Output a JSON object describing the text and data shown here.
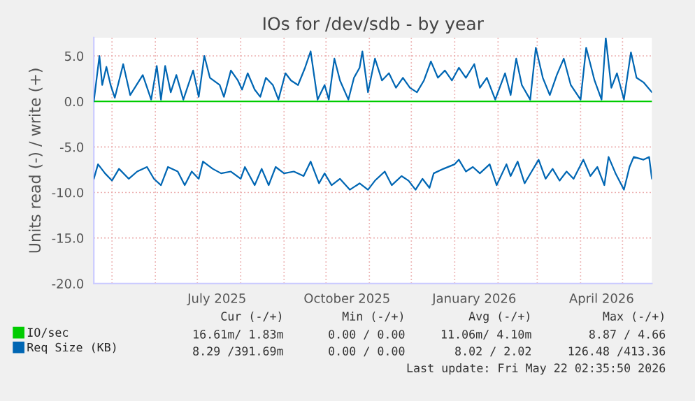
{
  "chart_data": {
    "type": "line",
    "title": "IOs for /dev/sdb - by year",
    "ylabel": "Units read (-) / write (+)",
    "series": [
      {
        "name": "IO/sec",
        "color": "#00cc00",
        "x": [
          "2025-04-18",
          "2026-05-22"
        ],
        "values": [
          0.0,
          0.0
        ]
      },
      {
        "name": "Req Size (KB)",
        "color": "#0066b3",
        "x": [
          "2025-04-18",
          "2025-04-22",
          "2025-04-24",
          "2025-04-27",
          "2025-04-30",
          "2025-05-03",
          "2025-05-09",
          "2025-05-14",
          "2025-05-23",
          "2025-05-29",
          "2025-06-02",
          "2025-06-05",
          "2025-06-08",
          "2025-06-12",
          "2025-06-16",
          "2025-06-21",
          "2025-06-28",
          "2025-07-02",
          "2025-07-06",
          "2025-07-10",
          "2025-07-17",
          "2025-07-20",
          "2025-07-25",
          "2025-07-30",
          "2025-08-02",
          "2025-08-06",
          "2025-08-11",
          "2025-08-15",
          "2025-08-19",
          "2025-08-24",
          "2025-08-28",
          "2025-09-02",
          "2025-09-06",
          "2025-09-11",
          "2025-09-16",
          "2025-09-20",
          "2025-09-25",
          "2025-09-30",
          "2025-10-03",
          "2025-10-07",
          "2025-10-11",
          "2025-10-17",
          "2025-10-21",
          "2025-10-25",
          "2025-10-27",
          "2025-10-31",
          "2025-11-05",
          "2025-11-10",
          "2025-11-15",
          "2025-11-20",
          "2025-11-25",
          "2025-11-30",
          "2025-12-05",
          "2025-12-10",
          "2025-12-15",
          "2025-12-20",
          "2025-12-25",
          "2025-12-30",
          "2026-01-04",
          "2026-01-09",
          "2026-01-15",
          "2026-01-19",
          "2026-01-24",
          "2026-01-30",
          "2026-02-06",
          "2026-02-10",
          "2026-02-14",
          "2026-02-18",
          "2026-02-24",
          "2026-02-28",
          "2026-03-05",
          "2026-03-10",
          "2026-03-15",
          "2026-03-20",
          "2026-03-25",
          "2026-04-01",
          "2026-04-05",
          "2026-04-11",
          "2026-04-16",
          "2026-04-19",
          "2026-04-23",
          "2026-04-27",
          "2026-05-02",
          "2026-05-07",
          "2026-05-11",
          "2026-05-16",
          "2026-05-22"
        ],
        "values": [
          0.0,
          5.0,
          1.8,
          3.8,
          1.8,
          0.4,
          4.1,
          0.7,
          2.9,
          0.2,
          3.9,
          0.2,
          3.9,
          1.0,
          2.9,
          0.2,
          3.4,
          0.5,
          5.0,
          2.6,
          1.8,
          0.5,
          3.4,
          2.3,
          1.3,
          3.1,
          1.3,
          0.5,
          2.6,
          1.8,
          0.2,
          3.1,
          2.3,
          1.8,
          3.7,
          5.5,
          0.2,
          1.8,
          0.2,
          4.7,
          2.3,
          0.2,
          2.6,
          3.7,
          5.5,
          1.0,
          4.7,
          2.3,
          3.1,
          1.5,
          2.6,
          1.5,
          1.0,
          2.3,
          4.4,
          2.6,
          3.4,
          2.3,
          3.7,
          2.6,
          4.1,
          1.5,
          2.6,
          0.2,
          3.1,
          0.7,
          4.7,
          1.8,
          0.2,
          5.9,
          2.6,
          0.7,
          2.9,
          4.7,
          1.8,
          0.2,
          5.9,
          2.3,
          0.2,
          7.0,
          1.5,
          3.1,
          0.2,
          5.4,
          2.6,
          2.1,
          1.0
        ]
      },
      {
        "color": "#0066b3",
        "x": [
          "2025-04-18",
          "2025-04-21",
          "2025-04-26",
          "2025-05-01",
          "2025-05-06",
          "2025-05-13",
          "2025-05-19",
          "2025-05-26",
          "2025-05-31",
          "2025-06-05",
          "2025-06-10",
          "2025-06-17",
          "2025-06-22",
          "2025-06-27",
          "2025-07-02",
          "2025-07-05",
          "2025-07-12",
          "2025-07-18",
          "2025-07-25",
          "2025-08-01",
          "2025-08-04",
          "2025-08-11",
          "2025-08-16",
          "2025-08-21",
          "2025-08-26",
          "2025-09-01",
          "2025-09-08",
          "2025-09-15",
          "2025-09-20",
          "2025-09-26",
          "2025-09-30",
          "2025-10-05",
          "2025-10-11",
          "2025-10-18",
          "2025-10-25",
          "2025-10-31",
          "2025-11-05",
          "2025-11-12",
          "2025-11-17",
          "2025-11-24",
          "2025-11-29",
          "2025-12-04",
          "2025-12-09",
          "2025-12-14",
          "2025-12-17",
          "2025-12-24",
          "2026-01-01",
          "2026-01-04",
          "2026-01-09",
          "2026-01-14",
          "2026-01-19",
          "2026-01-26",
          "2026-01-31",
          "2026-02-07",
          "2026-02-10",
          "2026-02-15",
          "2026-02-20",
          "2026-02-25",
          "2026-03-02",
          "2026-03-07",
          "2026-03-12",
          "2026-03-17",
          "2026-03-22",
          "2026-03-27",
          "2026-04-03",
          "2026-04-08",
          "2026-04-13",
          "2026-04-18",
          "2026-04-21",
          "2026-04-26",
          "2026-05-02",
          "2026-05-06",
          "2026-05-09",
          "2026-05-16",
          "2026-05-20",
          "2026-05-22"
        ],
        "values": [
          -8.5,
          -6.9,
          -7.9,
          -8.7,
          -7.4,
          -8.5,
          -7.7,
          -7.2,
          -8.5,
          -9.2,
          -7.2,
          -7.7,
          -9.2,
          -7.7,
          -8.5,
          -6.6,
          -7.4,
          -7.9,
          -7.7,
          -8.5,
          -7.2,
          -9.2,
          -7.4,
          -9.2,
          -7.2,
          -7.9,
          -7.7,
          -8.2,
          -6.6,
          -9.0,
          -7.9,
          -9.2,
          -8.5,
          -9.7,
          -9.0,
          -9.7,
          -8.7,
          -7.7,
          -9.2,
          -8.2,
          -8.7,
          -9.7,
          -8.5,
          -9.5,
          -7.9,
          -7.4,
          -6.9,
          -6.4,
          -7.7,
          -7.2,
          -7.9,
          -6.9,
          -9.2,
          -6.9,
          -8.2,
          -6.6,
          -9.0,
          -7.7,
          -6.4,
          -8.5,
          -7.4,
          -8.7,
          -7.7,
          -8.5,
          -6.4,
          -8.2,
          -7.2,
          -9.2,
          -6.1,
          -7.9,
          -9.7,
          -7.2,
          -6.1,
          -6.4,
          -6.1,
          -8.5
        ]
      }
    ],
    "xlim": [
      "2025-04-18",
      "2026-05-22"
    ],
    "xticks": [
      {
        "value": "2025-05-01",
        "label": null
      },
      {
        "value": "2025-06-01",
        "label": null
      },
      {
        "value": "2025-07-01",
        "label": null
      },
      {
        "value": "2025-07-15",
        "label": "July 2025"
      },
      {
        "value": "2025-08-01",
        "label": null
      },
      {
        "value": "2025-09-01",
        "label": null
      },
      {
        "value": "2025-10-01",
        "label": null
      },
      {
        "value": "2025-10-16",
        "label": "October 2025"
      },
      {
        "value": "2025-11-01",
        "label": null
      },
      {
        "value": "2025-12-01",
        "label": null
      },
      {
        "value": "2026-01-01",
        "label": null
      },
      {
        "value": "2026-01-15",
        "label": "January 2026"
      },
      {
        "value": "2026-02-01",
        "label": null
      },
      {
        "value": "2026-03-01",
        "label": null
      },
      {
        "value": "2026-04-01",
        "label": null
      },
      {
        "value": "2026-04-16",
        "label": "April 2026"
      },
      {
        "value": "2026-05-01",
        "label": null
      }
    ],
    "ylim": [
      -20,
      7
    ],
    "yticks": [
      {
        "value": -20,
        "label": "-20.0"
      },
      {
        "value": -15,
        "label": "-15.0"
      },
      {
        "value": -10,
        "label": "-10.0"
      },
      {
        "value": -5,
        "label": "-5.0"
      },
      {
        "value": 0,
        "label": "0.0"
      },
      {
        "value": 5,
        "label": "5.0"
      }
    ],
    "grid": true,
    "legend": "bottom left",
    "annotations": [
      "Cur (-/+)",
      "Min (-/+)",
      "Avg (-/+)",
      "Max (-/+)",
      "16.61m/ 1.83m",
      "0.00 / 0.00",
      "11.06m/ 4.10m",
      "8.87 / 4.66",
      "8.29 /391.69m",
      "0.00 / 0.00",
      "8.02 / 2.02",
      "126.48 /413.36",
      "Last update: Fri May 22 02:35:50 2026"
    ]
  }
}
